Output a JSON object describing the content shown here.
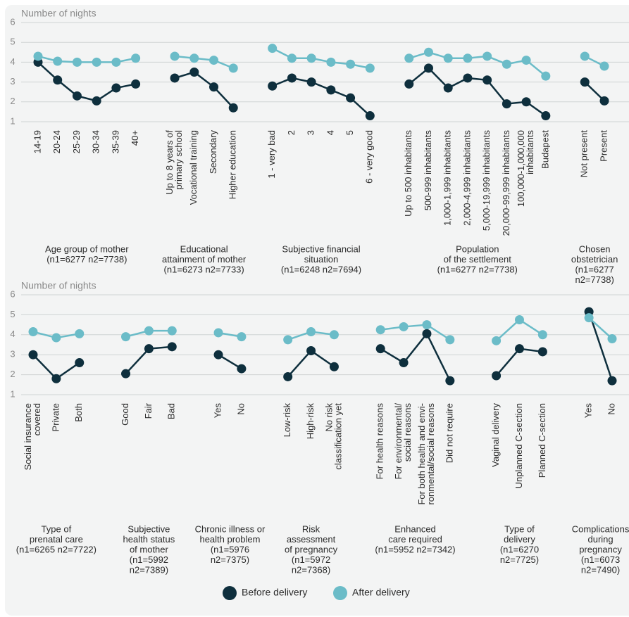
{
  "legend": [
    {
      "name": "Before delivery",
      "color": "#0e2f3d"
    },
    {
      "name": "After delivery",
      "color": "#6bbcc8"
    }
  ],
  "chart_data": [
    {
      "type": "line",
      "ylabel": "Number of nights",
      "ylim": [
        1,
        6
      ],
      "yticks": [
        1,
        2,
        3,
        4,
        5,
        6
      ],
      "grid": true,
      "groups": [
        {
          "label": [
            "Age group of mother",
            "(n1=6277 n2=7738)"
          ],
          "categories": [
            [
              "14-19"
            ],
            [
              "20-24"
            ],
            [
              "25-29"
            ],
            [
              "30-34"
            ],
            [
              "35-39"
            ],
            [
              "40+"
            ]
          ],
          "series": [
            {
              "values": [
                4.0,
                3.1,
                2.3,
                2.05,
                2.7,
                2.9
              ]
            },
            {
              "values": [
                4.3,
                4.05,
                4.0,
                4.0,
                4.0,
                4.2
              ]
            }
          ]
        },
        {
          "label": [
            "Educational",
            "attainment of mother",
            "(n1=6273 n2=7733)"
          ],
          "categories": [
            [
              "Up to 8 years of",
              "primary school"
            ],
            [
              "Vocational training"
            ],
            [
              "Secondary"
            ],
            [
              "Higher education"
            ]
          ],
          "series": [
            {
              "values": [
                3.2,
                3.5,
                2.75,
                1.7
              ]
            },
            {
              "values": [
                4.3,
                4.2,
                4.1,
                3.7
              ]
            }
          ]
        },
        {
          "label": [
            "Subjective financial",
            "situation",
            "(n1=6248 n2=7694)"
          ],
          "categories": [
            [
              "1 - very bad"
            ],
            [
              "2"
            ],
            [
              "3"
            ],
            [
              "4"
            ],
            [
              "5"
            ],
            [
              "6 - very good"
            ]
          ],
          "series": [
            {
              "values": [
                2.8,
                3.2,
                3.0,
                2.6,
                2.2,
                1.3
              ]
            },
            {
              "values": [
                4.7,
                4.2,
                4.2,
                4.0,
                3.9,
                3.7
              ]
            }
          ]
        },
        {
          "label": [
            "Population",
            "of the settlement",
            "(n1=6277 n2=7738)"
          ],
          "categories": [
            [
              "Up to 500 inhabitants"
            ],
            [
              "500-999 inhabitants"
            ],
            [
              "1,000-1,999 inhabitants"
            ],
            [
              "2,000-4,999 inhabitants"
            ],
            [
              "5,000-19,999 inhabitants"
            ],
            [
              "20,000-99,999 inhabitants"
            ],
            [
              "100,000-1,000,000",
              "inhabitants"
            ],
            [
              "Budapest"
            ]
          ],
          "series": [
            {
              "values": [
                2.9,
                3.7,
                2.7,
                3.2,
                3.1,
                1.9,
                2.0,
                1.3
              ]
            },
            {
              "values": [
                4.2,
                4.5,
                4.2,
                4.2,
                4.3,
                3.9,
                4.1,
                3.3
              ]
            }
          ]
        },
        {
          "label": [
            "Chosen",
            "obstetrician",
            "(n1=6277",
            "n2=7738)"
          ],
          "categories": [
            [
              "Not present"
            ],
            [
              "Present"
            ]
          ],
          "series": [
            {
              "values": [
                3.0,
                2.05
              ]
            },
            {
              "values": [
                4.3,
                3.8
              ]
            }
          ]
        }
      ]
    },
    {
      "type": "line",
      "ylabel": "Number of nights",
      "ylim": [
        1,
        6
      ],
      "yticks": [
        1,
        2,
        3,
        4,
        5,
        6
      ],
      "grid": true,
      "groups": [
        {
          "label": [
            "Type of",
            "prenatal care",
            "(n1=6265 n2=7722)"
          ],
          "categories": [
            [
              "Social insurance",
              "covered"
            ],
            [
              "Private"
            ],
            [
              "Both"
            ]
          ],
          "series": [
            {
              "values": [
                3.0,
                1.8,
                2.6
              ]
            },
            {
              "values": [
                4.15,
                3.85,
                4.05
              ]
            }
          ]
        },
        {
          "label": [
            "Subjective",
            "health status",
            "of mother",
            "(n1=5992",
            "n2=7389)"
          ],
          "categories": [
            [
              "Good"
            ],
            [
              "Fair"
            ],
            [
              "Bad"
            ]
          ],
          "series": [
            {
              "values": [
                2.05,
                3.3,
                3.4
              ]
            },
            {
              "values": [
                3.9,
                4.2,
                4.2
              ]
            }
          ]
        },
        {
          "label": [
            "Chronic illness or",
            "health problem",
            "(n1=5976",
            "n2=7375)"
          ],
          "categories": [
            [
              "Yes"
            ],
            [
              "No"
            ]
          ],
          "series": [
            {
              "values": [
                3.0,
                2.3
              ]
            },
            {
              "values": [
                4.1,
                3.9
              ]
            }
          ]
        },
        {
          "label": [
            "Risk",
            "assessment",
            "of pregnancy",
            "(n1=5972",
            "n2=7368)"
          ],
          "categories": [
            [
              "Low-risk"
            ],
            [
              "High-risk"
            ],
            [
              "No risk",
              "classification yet"
            ]
          ],
          "series": [
            {
              "values": [
                1.9,
                3.2,
                2.4
              ]
            },
            {
              "values": [
                3.75,
                4.15,
                4.0
              ]
            }
          ]
        },
        {
          "label": [
            "Enhanced",
            "care required",
            "(n1=5952 n2=7342)"
          ],
          "categories": [
            [
              "For health reasons"
            ],
            [
              "For environmental/",
              "social reasons"
            ],
            [
              "For both health and envi-",
              "ronmental/social reasons"
            ],
            [
              "Did not require"
            ]
          ],
          "series": [
            {
              "values": [
                3.3,
                2.6,
                4.05,
                1.7
              ]
            },
            {
              "values": [
                4.25,
                4.4,
                4.5,
                3.75
              ]
            }
          ]
        },
        {
          "label": [
            "Type of",
            "delivery",
            "(n1=6270",
            "n2=7725)"
          ],
          "categories": [
            [
              "Vaginal delivery"
            ],
            [
              "Unplanned C-section"
            ],
            [
              "Planned C-section"
            ]
          ],
          "series": [
            {
              "values": [
                1.95,
                3.3,
                3.15
              ]
            },
            {
              "values": [
                3.7,
                4.75,
                4.0
              ]
            }
          ]
        },
        {
          "label": [
            "Complications",
            "during",
            "pregnancy",
            "(n1=6073",
            "n2=7490)"
          ],
          "categories": [
            [
              "Yes"
            ],
            [
              "No"
            ]
          ],
          "series": [
            {
              "values": [
                5.15,
                1.7
              ]
            },
            {
              "values": [
                4.85,
                3.8
              ]
            }
          ]
        }
      ]
    }
  ]
}
